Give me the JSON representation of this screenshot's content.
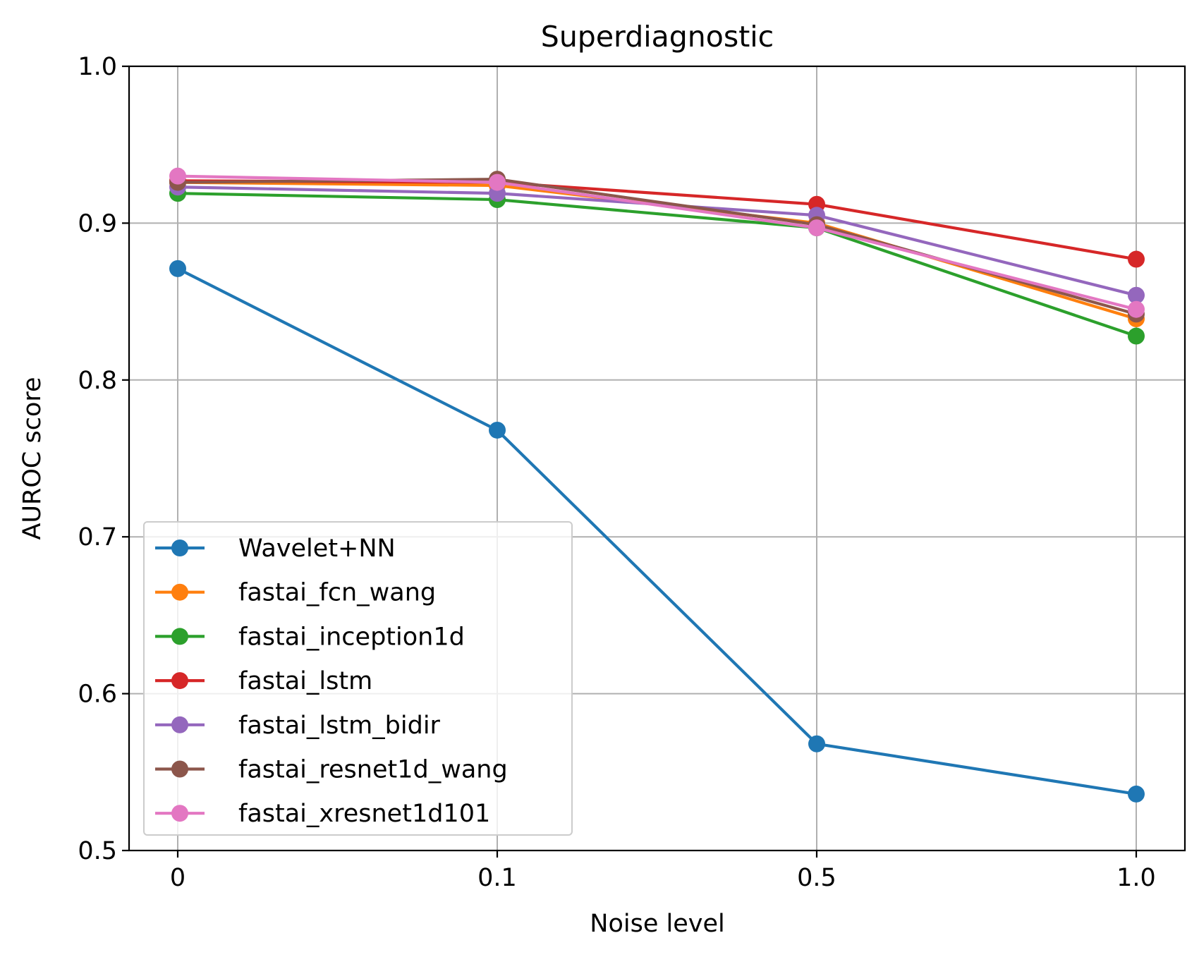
{
  "chart_data": {
    "type": "line",
    "title": "Superdiagnostic",
    "xlabel": "Noise level",
    "ylabel": "AUROC score",
    "categories": [
      "0",
      "0.1",
      "0.5",
      "1.0"
    ],
    "ylim": [
      0.5,
      1.0
    ],
    "yticks": [
      "0.5",
      "0.6",
      "0.7",
      "0.8",
      "0.9",
      "1.0"
    ],
    "grid": true,
    "legend_position": "lower-left",
    "series": [
      {
        "name": "Wavelet+NN",
        "color": "#1f77b4",
        "values": [
          0.871,
          0.768,
          0.568,
          0.536
        ]
      },
      {
        "name": "fastai_fcn_wang",
        "color": "#ff7f0e",
        "values": [
          0.926,
          0.924,
          0.9,
          0.839
        ]
      },
      {
        "name": "fastai_inception1d",
        "color": "#2ca02c",
        "values": [
          0.919,
          0.915,
          0.897,
          0.828
        ]
      },
      {
        "name": "fastai_lstm",
        "color": "#d62728",
        "values": [
          0.927,
          0.926,
          0.912,
          0.877
        ]
      },
      {
        "name": "fastai_lstm_bidir",
        "color": "#9467bd",
        "values": [
          0.923,
          0.919,
          0.905,
          0.854
        ]
      },
      {
        "name": "fastai_resnet1d_wang",
        "color": "#8c564b",
        "values": [
          0.926,
          0.928,
          0.899,
          0.842
        ]
      },
      {
        "name": "fastai_xresnet1d101",
        "color": "#e377c2",
        "values": [
          0.93,
          0.926,
          0.897,
          0.845
        ]
      }
    ]
  }
}
